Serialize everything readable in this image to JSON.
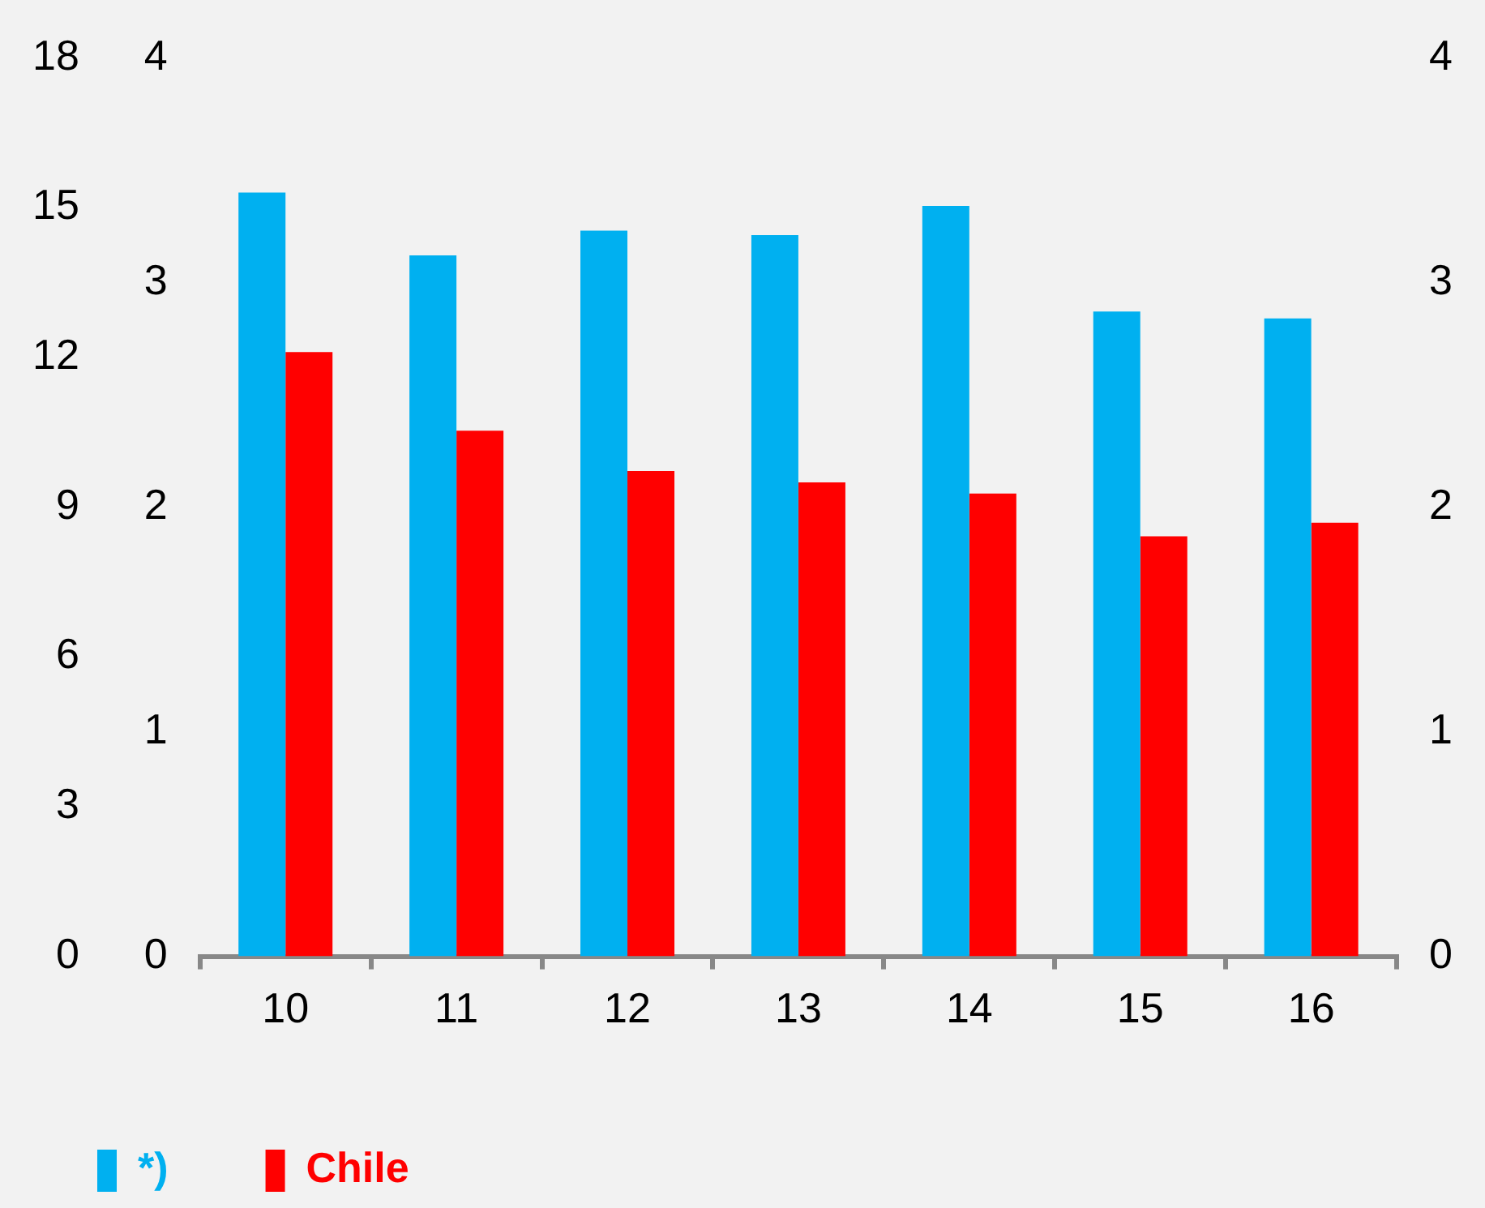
{
  "chart_data": {
    "type": "bar",
    "categories": [
      "10",
      "11",
      "12",
      "13",
      "14",
      "15",
      "16"
    ],
    "series": [
      {
        "name": "*)",
        "color": "#00b0f0",
        "values": [
          3.4,
          3.12,
          3.23,
          3.21,
          3.34,
          2.87,
          2.84
        ]
      },
      {
        "name": "Chile",
        "color": "#ff0000",
        "values": [
          2.69,
          2.34,
          2.16,
          2.11,
          2.06,
          1.87,
          1.93
        ]
      }
    ],
    "ylim": [
      0,
      4
    ],
    "yticks": [
      0,
      1,
      2,
      3,
      4
    ],
    "y2lim": [
      0,
      4
    ],
    "y2ticks": [
      0,
      1,
      2,
      3,
      4
    ],
    "y3lim": [
      0,
      18
    ],
    "y3ticks": [
      0,
      3,
      6,
      9,
      12,
      15,
      18
    ],
    "grid": false,
    "legend": "bottom left"
  }
}
